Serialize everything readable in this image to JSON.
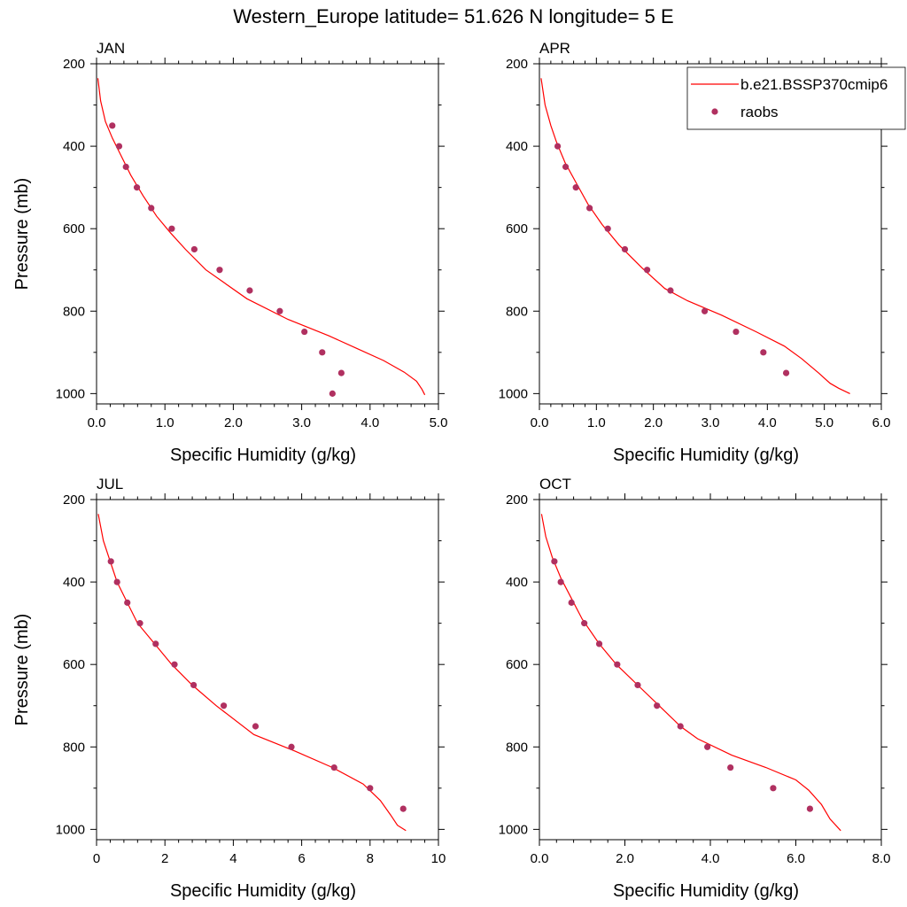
{
  "figure_title": "Western_Europe  latitude= 51.626 N longitude= 5 E",
  "legend": {
    "model_label": "b.e21.BSSP370cmip6",
    "obs_label": "raobs"
  },
  "colors": {
    "model_line": "#ff0000",
    "obs_marker": "#b03060"
  },
  "chart_data": [
    {
      "type": "line",
      "title": "JAN",
      "xlabel": "Specific Humidity (g/kg)",
      "ylabel": "Pressure (mb)",
      "xlim": [
        0,
        5
      ],
      "ylim": [
        200,
        1025
      ],
      "y_reversed": true,
      "xticks": [
        0,
        1,
        2,
        3,
        4,
        5
      ],
      "xtick_labels": [
        "0.0",
        "1.0",
        "2.0",
        "3.0",
        "4.0",
        "5.0"
      ],
      "yticks": [
        200,
        400,
        600,
        800,
        1000
      ],
      "ytick_labels": [
        "200",
        "400",
        "600",
        "800",
        "1000"
      ],
      "series": [
        {
          "name": "b.e21.BSSP370cmip6",
          "kind": "line",
          "points": [
            [
              0.02,
              235
            ],
            [
              0.06,
              290
            ],
            [
              0.13,
              340
            ],
            [
              0.23,
              380
            ],
            [
              0.35,
              420
            ],
            [
              0.5,
              470
            ],
            [
              0.68,
              520
            ],
            [
              0.88,
              570
            ],
            [
              1.08,
              610
            ],
            [
              1.3,
              650
            ],
            [
              1.6,
              700
            ],
            [
              2.2,
              770
            ],
            [
              2.8,
              820
            ],
            [
              3.4,
              860
            ],
            [
              3.8,
              890
            ],
            [
              4.2,
              920
            ],
            [
              4.5,
              948
            ],
            [
              4.68,
              970
            ],
            [
              4.76,
              990
            ],
            [
              4.8,
              1003
            ]
          ]
        },
        {
          "name": "raobs",
          "kind": "scatter",
          "points": [
            [
              0.23,
              350
            ],
            [
              0.33,
              400
            ],
            [
              0.43,
              450
            ],
            [
              0.59,
              500
            ],
            [
              0.8,
              550
            ],
            [
              1.1,
              600
            ],
            [
              1.43,
              650
            ],
            [
              1.8,
              700
            ],
            [
              2.24,
              750
            ],
            [
              2.68,
              800
            ],
            [
              3.04,
              850
            ],
            [
              3.3,
              900
            ],
            [
              3.58,
              950
            ],
            [
              3.45,
              1000
            ]
          ]
        }
      ]
    },
    {
      "type": "line",
      "title": "APR",
      "xlabel": "Specific Humidity (g/kg)",
      "ylabel": "",
      "xlim": [
        0,
        6
      ],
      "ylim": [
        200,
        1025
      ],
      "y_reversed": true,
      "xticks": [
        0,
        1,
        2,
        3,
        4,
        5,
        6
      ],
      "xtick_labels": [
        "0.0",
        "1.0",
        "2.0",
        "3.0",
        "4.0",
        "5.0",
        "6.0"
      ],
      "yticks": [
        200,
        400,
        600,
        800,
        1000
      ],
      "ytick_labels": [
        "200",
        "400",
        "600",
        "800",
        "1000"
      ],
      "series": [
        {
          "name": "b.e21.BSSP370cmip6",
          "kind": "line",
          "points": [
            [
              0.03,
              235
            ],
            [
              0.1,
              300
            ],
            [
              0.2,
              350
            ],
            [
              0.3,
              390
            ],
            [
              0.45,
              440
            ],
            [
              0.65,
              490
            ],
            [
              0.85,
              540
            ],
            [
              1.1,
              590
            ],
            [
              1.4,
              640
            ],
            [
              1.8,
              695
            ],
            [
              2.2,
              745
            ],
            [
              2.6,
              775
            ],
            [
              3.2,
              810
            ],
            [
              3.8,
              850
            ],
            [
              4.3,
              885
            ],
            [
              4.6,
              915
            ],
            [
              4.9,
              950
            ],
            [
              5.1,
              975
            ],
            [
              5.25,
              987
            ],
            [
              5.45,
              1000
            ]
          ]
        },
        {
          "name": "raobs",
          "kind": "scatter",
          "points": [
            [
              0.32,
              400
            ],
            [
              0.46,
              450
            ],
            [
              0.64,
              500
            ],
            [
              0.88,
              550
            ],
            [
              1.2,
              600
            ],
            [
              1.5,
              650
            ],
            [
              1.89,
              700
            ],
            [
              2.3,
              750
            ],
            [
              2.9,
              800
            ],
            [
              3.45,
              850
            ],
            [
              3.93,
              900
            ],
            [
              4.33,
              950
            ]
          ]
        }
      ]
    },
    {
      "type": "line",
      "title": "JUL",
      "xlabel": "Specific Humidity (g/kg)",
      "ylabel": "Pressure (mb)",
      "xlim": [
        0,
        10
      ],
      "ylim": [
        200,
        1025
      ],
      "y_reversed": true,
      "xticks": [
        0,
        2,
        4,
        6,
        8,
        10
      ],
      "xtick_labels": [
        "0",
        "2",
        "4",
        "6",
        "8",
        "10"
      ],
      "yticks": [
        200,
        400,
        600,
        800,
        1000
      ],
      "ytick_labels": [
        "200",
        "400",
        "600",
        "800",
        "1000"
      ],
      "series": [
        {
          "name": "b.e21.BSSP370cmip6",
          "kind": "line",
          "points": [
            [
              0.05,
              235
            ],
            [
              0.2,
              300
            ],
            [
              0.4,
              350
            ],
            [
              0.6,
              400
            ],
            [
              0.9,
              450
            ],
            [
              1.2,
              500
            ],
            [
              1.7,
              550
            ],
            [
              2.2,
              600
            ],
            [
              2.8,
              650
            ],
            [
              3.5,
              700
            ],
            [
              4.6,
              770
            ],
            [
              5.8,
              810
            ],
            [
              6.9,
              850
            ],
            [
              7.8,
              890
            ],
            [
              8.3,
              930
            ],
            [
              8.6,
              965
            ],
            [
              8.8,
              990
            ],
            [
              9.05,
              1003
            ]
          ]
        },
        {
          "name": "raobs",
          "kind": "scatter",
          "points": [
            [
              0.42,
              350
            ],
            [
              0.6,
              400
            ],
            [
              0.9,
              450
            ],
            [
              1.27,
              500
            ],
            [
              1.73,
              550
            ],
            [
              2.28,
              600
            ],
            [
              2.84,
              650
            ],
            [
              3.72,
              700
            ],
            [
              4.65,
              750
            ],
            [
              5.7,
              800
            ],
            [
              6.95,
              850
            ],
            [
              8.0,
              900
            ],
            [
              8.97,
              950
            ]
          ]
        }
      ]
    },
    {
      "type": "line",
      "title": "OCT",
      "xlabel": "Specific Humidity (g/kg)",
      "ylabel": "",
      "xlim": [
        0,
        8
      ],
      "ylim": [
        200,
        1025
      ],
      "y_reversed": true,
      "xticks": [
        0,
        2,
        4,
        6,
        8
      ],
      "xtick_labels": [
        "0.0",
        "2.0",
        "4.0",
        "6.0",
        "8.0"
      ],
      "yticks": [
        200,
        400,
        600,
        800,
        1000
      ],
      "ytick_labels": [
        "200",
        "400",
        "600",
        "800",
        "1000"
      ],
      "series": [
        {
          "name": "b.e21.BSSP370cmip6",
          "kind": "line",
          "points": [
            [
              0.05,
              235
            ],
            [
              0.15,
              290
            ],
            [
              0.3,
              340
            ],
            [
              0.5,
              390
            ],
            [
              0.75,
              440
            ],
            [
              1.0,
              490
            ],
            [
              1.4,
              550
            ],
            [
              1.8,
              600
            ],
            [
              2.3,
              650
            ],
            [
              2.8,
              700
            ],
            [
              3.3,
              750
            ],
            [
              3.7,
              780
            ],
            [
              4.5,
              820
            ],
            [
              5.3,
              850
            ],
            [
              6.0,
              880
            ],
            [
              6.3,
              905
            ],
            [
              6.6,
              940
            ],
            [
              6.8,
              975
            ],
            [
              7.05,
              1003
            ]
          ]
        },
        {
          "name": "raobs",
          "kind": "scatter",
          "points": [
            [
              0.35,
              350
            ],
            [
              0.5,
              400
            ],
            [
              0.75,
              450
            ],
            [
              1.05,
              500
            ],
            [
              1.4,
              550
            ],
            [
              1.82,
              600
            ],
            [
              2.3,
              650
            ],
            [
              2.75,
              700
            ],
            [
              3.3,
              750
            ],
            [
              3.93,
              800
            ],
            [
              4.47,
              850
            ],
            [
              5.47,
              900
            ],
            [
              6.33,
              950
            ]
          ]
        }
      ]
    }
  ]
}
